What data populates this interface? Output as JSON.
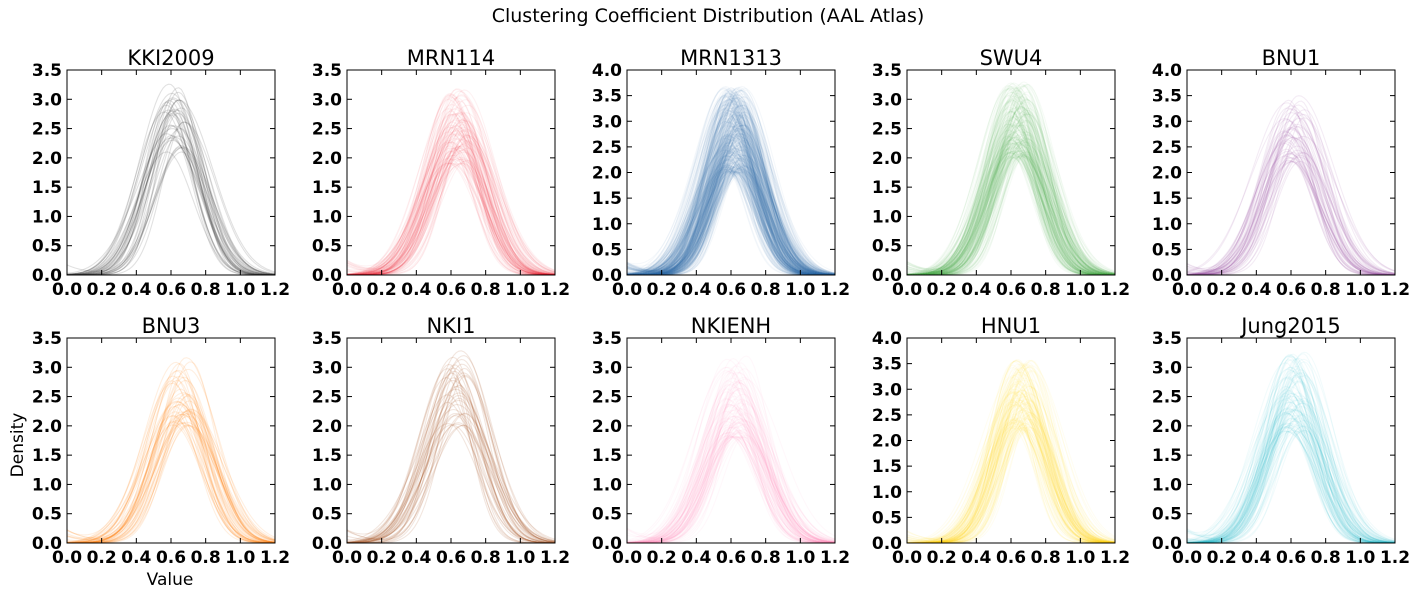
{
  "figure": {
    "title": "Clustering Coefficient Distribution (AAL Atlas)",
    "xlabel": "Value",
    "ylabel": "Density"
  },
  "chart_data": [
    {
      "type": "line",
      "title": "KKI2009",
      "color": "#333333",
      "xlim": [
        0,
        1.2
      ],
      "ylim": [
        0,
        3.5
      ],
      "xticks": [
        "0.0",
        "0.2",
        "0.4",
        "0.6",
        "0.8",
        "1.0",
        "1.2"
      ],
      "yticks": [
        "0.0",
        "0.5",
        "1.0",
        "1.5",
        "2.0",
        "2.5",
        "3.0",
        "3.5"
      ],
      "n_curves": 40,
      "peak_x": 0.62,
      "peak_y_range": [
        2.1,
        3.3
      ],
      "spread_sd": 0.155
    },
    {
      "type": "line",
      "title": "MRN114",
      "color": "#e41a1c",
      "xlim": [
        0,
        1.2
      ],
      "ylim": [
        0,
        3.5
      ],
      "xticks": [
        "0.0",
        "0.2",
        "0.4",
        "0.6",
        "0.8",
        "1.0",
        "1.2"
      ],
      "yticks": [
        "0.0",
        "0.5",
        "1.0",
        "1.5",
        "2.0",
        "2.5",
        "3.0",
        "3.5"
      ],
      "n_curves": 110,
      "peak_x": 0.64,
      "peak_y_range": [
        1.9,
        3.2
      ],
      "spread_sd": 0.16
    },
    {
      "type": "line",
      "title": "MRN1313",
      "color": "#377eb8",
      "xlim": [
        0,
        1.2
      ],
      "ylim": [
        0,
        4.0
      ],
      "xticks": [
        "0.0",
        "0.2",
        "0.4",
        "0.6",
        "0.8",
        "1.0",
        "1.2"
      ],
      "yticks": [
        "0.0",
        "0.5",
        "1.0",
        "1.5",
        "2.0",
        "2.5",
        "3.0",
        "3.5",
        "4.0"
      ],
      "n_curves": 400,
      "peak_x": 0.62,
      "peak_y_range": [
        2.0,
        3.7
      ],
      "spread_sd": 0.15
    },
    {
      "type": "line",
      "title": "SWU4",
      "color": "#4daf4a",
      "xlim": [
        0,
        1.2
      ],
      "ylim": [
        0,
        3.5
      ],
      "xticks": [
        "0.0",
        "0.2",
        "0.4",
        "0.6",
        "0.8",
        "1.0",
        "1.2"
      ],
      "yticks": [
        "0.0",
        "0.5",
        "1.0",
        "1.5",
        "2.0",
        "2.5",
        "3.0",
        "3.5"
      ],
      "n_curves": 220,
      "peak_x": 0.64,
      "peak_y_range": [
        2.0,
        3.3
      ],
      "spread_sd": 0.155
    },
    {
      "type": "line",
      "title": "BNU1",
      "color": "#984ea3",
      "xlim": [
        0,
        1.2
      ],
      "ylim": [
        0,
        4.0
      ],
      "xticks": [
        "0.0",
        "0.2",
        "0.4",
        "0.6",
        "0.8",
        "1.0",
        "1.2"
      ],
      "yticks": [
        "0.0",
        "0.5",
        "1.0",
        "1.5",
        "2.0",
        "2.5",
        "3.0",
        "3.5",
        "4.0"
      ],
      "n_curves": 55,
      "peak_x": 0.62,
      "peak_y_range": [
        2.2,
        3.5
      ],
      "spread_sd": 0.16
    },
    {
      "type": "line",
      "title": "BNU3",
      "color": "#ff7f00",
      "xlim": [
        0,
        1.2
      ],
      "ylim": [
        0,
        3.5
      ],
      "xticks": [
        "0.0",
        "0.2",
        "0.4",
        "0.6",
        "0.8",
        "1.0",
        "1.2"
      ],
      "yticks": [
        "0.0",
        "0.5",
        "1.0",
        "1.5",
        "2.0",
        "2.5",
        "3.0",
        "3.5"
      ],
      "n_curves": 50,
      "peak_x": 0.66,
      "peak_y_range": [
        2.0,
        3.2
      ],
      "spread_sd": 0.165
    },
    {
      "type": "line",
      "title": "NKI1",
      "color": "#a65628",
      "xlim": [
        0,
        1.2
      ],
      "ylim": [
        0,
        3.5
      ],
      "xticks": [
        "0.0",
        "0.2",
        "0.4",
        "0.6",
        "0.8",
        "1.0",
        "1.2"
      ],
      "yticks": [
        "0.0",
        "0.5",
        "1.0",
        "1.5",
        "2.0",
        "2.5",
        "3.0",
        "3.5"
      ],
      "n_curves": 40,
      "peak_x": 0.63,
      "peak_y_range": [
        2.0,
        3.3
      ],
      "spread_sd": 0.165
    },
    {
      "type": "line",
      "title": "NKIENH",
      "color": "#f781bf",
      "xlim": [
        0,
        1.2
      ],
      "ylim": [
        0,
        3.5
      ],
      "xticks": [
        "0.0",
        "0.2",
        "0.4",
        "0.6",
        "0.8",
        "1.0",
        "1.2"
      ],
      "yticks": [
        "0.0",
        "0.5",
        "1.0",
        "1.5",
        "2.0",
        "2.5",
        "3.0",
        "3.5"
      ],
      "n_curves": 100,
      "peak_x": 0.63,
      "peak_y_range": [
        1.8,
        3.2
      ],
      "spread_sd": 0.165
    },
    {
      "type": "line",
      "title": "HNU1",
      "color": "#ffd700",
      "xlim": [
        0,
        1.2
      ],
      "ylim": [
        0,
        4.0
      ],
      "xticks": [
        "0.0",
        "0.2",
        "0.4",
        "0.6",
        "0.8",
        "1.0",
        "1.2"
      ],
      "yticks": [
        "0.0",
        "0.5",
        "1.0",
        "1.5",
        "2.0",
        "2.5",
        "3.0",
        "3.5",
        "4.0"
      ],
      "n_curves": 150,
      "peak_x": 0.66,
      "peak_y_range": [
        2.2,
        3.6
      ],
      "spread_sd": 0.15
    },
    {
      "type": "line",
      "title": "Jung2015",
      "color": "#17becf",
      "xlim": [
        0,
        1.2
      ],
      "ylim": [
        0,
        3.5
      ],
      "xticks": [
        "0.0",
        "0.2",
        "0.4",
        "0.6",
        "0.8",
        "1.0",
        "1.2"
      ],
      "yticks": [
        "0.0",
        "0.5",
        "1.0",
        "1.5",
        "2.0",
        "2.5",
        "3.0",
        "3.5"
      ],
      "n_curves": 110,
      "peak_x": 0.62,
      "peak_y_range": [
        1.9,
        3.3
      ],
      "spread_sd": 0.16
    }
  ]
}
